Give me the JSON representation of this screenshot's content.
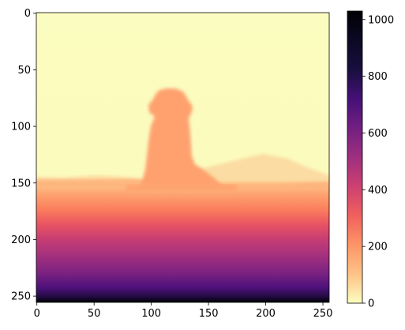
{
  "chart_data": {
    "type": "heatmap",
    "title": "",
    "xlabel": "",
    "ylabel": "",
    "image_shape": [
      256,
      256
    ],
    "xlim": [
      0,
      255
    ],
    "ylim": [
      255,
      0
    ],
    "x_ticks": [
      0,
      50,
      100,
      150,
      200,
      250
    ],
    "y_ticks": [
      0,
      50,
      100,
      150,
      200,
      250
    ],
    "x_tick_labels": [
      "0",
      "50",
      "100",
      "150",
      "200",
      "250"
    ],
    "y_tick_labels": [
      "0",
      "50",
      "100",
      "150",
      "200",
      "250"
    ],
    "colormap": "magma_r",
    "colorbar": {
      "vmin": 0,
      "vmax": 1030,
      "ticks": [
        0,
        200,
        400,
        600,
        800,
        1000
      ],
      "tick_labels": [
        "0",
        "200",
        "400",
        "600",
        "800",
        "1000"
      ]
    },
    "regions": {
      "sky_value": 15,
      "object_value": 200,
      "background_hills_value": 125,
      "ground_start_row": 148,
      "ground_start_value": 160,
      "ground_end_value": 1030
    },
    "colors": {
      "axis": "#000000",
      "background": "#ffffff"
    }
  }
}
